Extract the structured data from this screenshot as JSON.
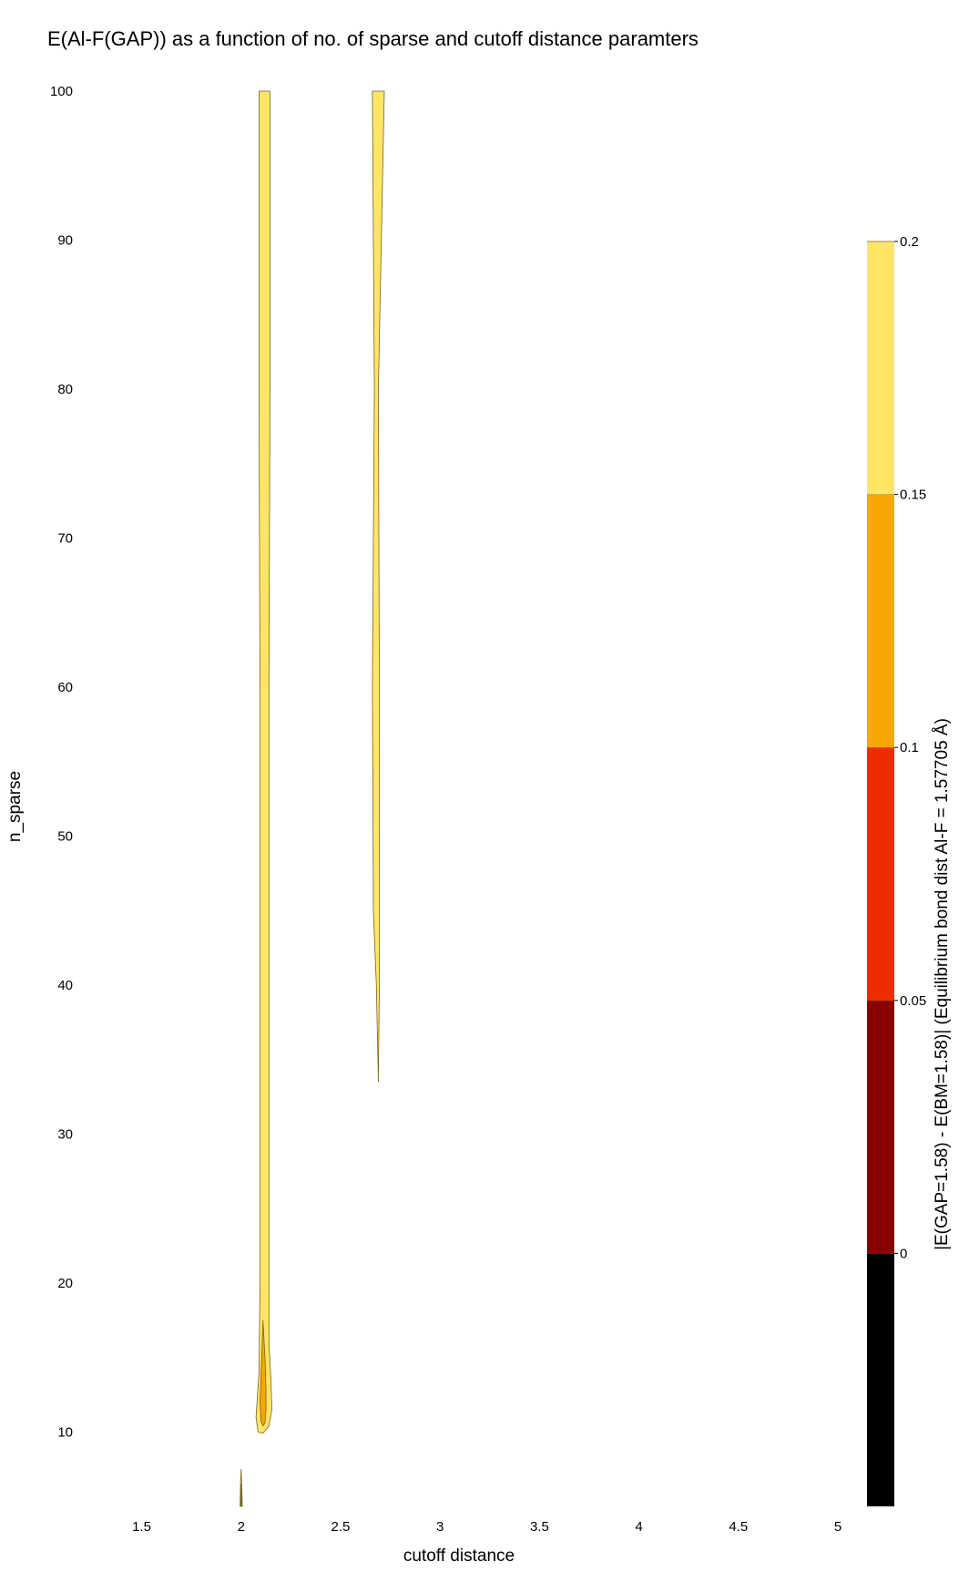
{
  "chart_data": {
    "type": "contour",
    "title": "E(Al-F(GAP)) as a function of no. of sparse and cutoff distance paramters",
    "xlabel": "cutoff distance",
    "ylabel": "n_sparse",
    "xlim": [
      1.2,
      5.0
    ],
    "ylim": [
      5,
      100
    ],
    "x_ticks": [
      "1.5",
      "2",
      "2.5",
      "3",
      "3.5",
      "4",
      "4.5",
      "5"
    ],
    "y_ticks": [
      "10",
      "20",
      "30",
      "40",
      "50",
      "60",
      "70",
      "80",
      "90",
      "100"
    ],
    "grid": false,
    "colorbar": {
      "label": "|E(GAP=1.58) - E(BM=1.58)| (Equilibrium bond dist Al-F = 1.57705 Å)",
      "levels": [
        {
          "from": -0.05,
          "to": 0,
          "color": "#000000"
        },
        {
          "from": 0,
          "to": 0.05,
          "color": "#8b0000"
        },
        {
          "from": 0.05,
          "to": 0.1,
          "color": "#ee2c00"
        },
        {
          "from": 0.1,
          "to": 0.15,
          "color": "#f9a602"
        },
        {
          "from": 0.15,
          "to": 0.2,
          "color": "#ffe566"
        }
      ],
      "ticks": [
        "0",
        "0.05",
        "0.1",
        "0.15",
        "0.2"
      ]
    },
    "regions": [
      {
        "level": "0.15-0.2",
        "color": "#ffe566",
        "points": [
          [
            2.09,
            100
          ],
          [
            2.09,
            80
          ],
          [
            2.095,
            60
          ],
          [
            2.095,
            40
          ],
          [
            2.095,
            20
          ],
          [
            2.09,
            14
          ],
          [
            2.08,
            12
          ],
          [
            2.075,
            11
          ],
          [
            2.085,
            10
          ],
          [
            2.11,
            9.9
          ],
          [
            2.14,
            10.4
          ],
          [
            2.155,
            11.5
          ],
          [
            2.15,
            13.5
          ],
          [
            2.14,
            16
          ],
          [
            2.14,
            20
          ],
          [
            2.14,
            40
          ],
          [
            2.14,
            60
          ],
          [
            2.145,
            80
          ],
          [
            2.145,
            100
          ]
        ]
      },
      {
        "level": "0.1-0.15",
        "color": "#f9a602",
        "points": [
          [
            2.11,
            17.5
          ],
          [
            2.12,
            15
          ],
          [
            2.125,
            13
          ],
          [
            2.125,
            11.5
          ],
          [
            2.12,
            10.6
          ],
          [
            2.11,
            10.4
          ],
          [
            2.1,
            10.7
          ],
          [
            2.095,
            12
          ],
          [
            2.1,
            13.8
          ],
          [
            2.105,
            15.5
          ]
        ]
      },
      {
        "level": "0.15-0.2",
        "color": "#ffe566",
        "points": [
          [
            2.66,
            100
          ],
          [
            2.67,
            80
          ],
          [
            2.66,
            60
          ],
          [
            2.665,
            45
          ],
          [
            2.68,
            40
          ],
          [
            2.69,
            33.5
          ],
          [
            2.695,
            40
          ],
          [
            2.695,
            60
          ],
          [
            2.69,
            80
          ],
          [
            2.72,
            100
          ]
        ]
      },
      {
        "level": "0.15-0.2",
        "color": "#ffe566",
        "points": [
          [
            2.0,
            7.5
          ],
          [
            2.003,
            6.5
          ],
          [
            2.006,
            5
          ],
          [
            1.995,
            5
          ],
          [
            1.997,
            6.5
          ]
        ]
      },
      {
        "level": "0.1-0.15",
        "color": "#f9a602",
        "points": [
          [
            2.0,
            6.5
          ],
          [
            2.003,
            5.6
          ],
          [
            2.004,
            5
          ],
          [
            1.997,
            5
          ],
          [
            1.998,
            5.6
          ]
        ]
      },
      {
        "level": "0.05-0.1",
        "color": "#ee2c00",
        "points": [
          [
            2.0,
            5.7
          ],
          [
            2.002,
            5
          ],
          [
            1.998,
            5
          ]
        ]
      }
    ]
  }
}
